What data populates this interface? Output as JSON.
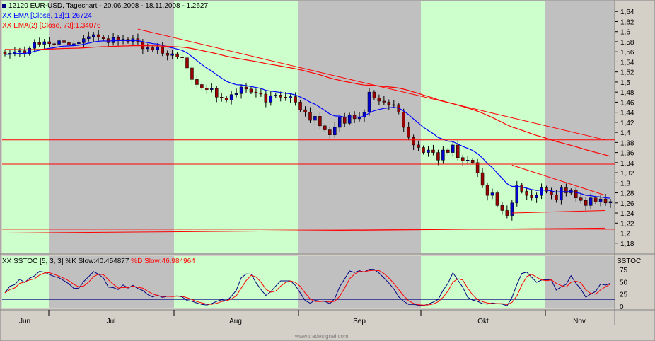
{
  "header": {
    "symbol_line": "12120  EUR-USD, Tagechart - 20.06.2008 - 18.11.2008 - 1.2627",
    "ema13_label": "EMA [Close, 13]:1.26724",
    "ema73_label": "EMA(2) [Close, 73]:1.34076"
  },
  "stoch": {
    "panel_tag": "SSTOC",
    "label_prefix": "SSTOC [5, 3, 3]",
    "k_label": "%K Slow:40.454877",
    "d_label": "%D Slow:46.984964",
    "levels": [
      80,
      20
    ],
    "axis_labels": [
      "75",
      "50",
      "25",
      "0"
    ]
  },
  "watermark": "www.tradesignal.com",
  "colors": {
    "bg_green": "#ccffcc",
    "bg_gray": "#c0c0c0",
    "candle_up": "#0000cc",
    "candle_down": "#990000",
    "ema13": "#0000ff",
    "ema73": "#ff0000",
    "trend": "#ff0000"
  },
  "chart_data": [
    {
      "type": "candlestick",
      "title": "12120  EUR-USD, Tagechart - 20.06.2008 - 18.11.2008 - 1.2627",
      "x_labels": [
        "Jun",
        "Jul",
        "Aug",
        "Sep",
        "Okt",
        "Nov"
      ],
      "y_ticks": [
        "1,64",
        "1,62",
        "1,6",
        "1,58",
        "1,56",
        "1,54",
        "1,52",
        "1,5",
        "1,48",
        "1,46",
        "1,44",
        "1,42",
        "1,4",
        "1,38",
        "1,36",
        "1,34",
        "1,32",
        "1,3",
        "1,28",
        "1,26",
        "1,24",
        "1,22",
        "1,2",
        "1,18"
      ],
      "ylim": [
        1.16,
        1.66
      ],
      "month_shading": [
        {
          "month": "Jun",
          "color": "green"
        },
        {
          "month": "Jul",
          "color": "gray"
        },
        {
          "month": "Aug",
          "color": "green"
        },
        {
          "month": "Sep",
          "color": "gray"
        },
        {
          "month": "Okt",
          "color": "green"
        },
        {
          "month": "Nov",
          "color": "gray"
        }
      ],
      "close": [
        1.555,
        1.557,
        1.56,
        1.562,
        1.556,
        1.567,
        1.578,
        1.575,
        1.58,
        1.576,
        1.575,
        1.582,
        1.578,
        1.574,
        1.576,
        1.578,
        1.586,
        1.59,
        1.594,
        1.589,
        1.586,
        1.578,
        1.588,
        1.582,
        1.585,
        1.58,
        1.586,
        1.58,
        1.566,
        1.568,
        1.564,
        1.57,
        1.557,
        1.553,
        1.556,
        1.55,
        1.548,
        1.528,
        1.505,
        1.495,
        1.488,
        1.485,
        1.487,
        1.47,
        1.468,
        1.464,
        1.475,
        1.477,
        1.49,
        1.486,
        1.48,
        1.478,
        1.476,
        1.46,
        1.473,
        1.474,
        1.47,
        1.468,
        1.471,
        1.46,
        1.445,
        1.44,
        1.424,
        1.432,
        1.413,
        1.405,
        1.395,
        1.41,
        1.43,
        1.418,
        1.435,
        1.427,
        1.43,
        1.44,
        1.48,
        1.468,
        1.462,
        1.46,
        1.455,
        1.455,
        1.44,
        1.41,
        1.39,
        1.375,
        1.37,
        1.36,
        1.365,
        1.36,
        1.345,
        1.365,
        1.36,
        1.375,
        1.35,
        1.343,
        1.345,
        1.34,
        1.32,
        1.295,
        1.275,
        1.28,
        1.255,
        1.245,
        1.235,
        1.26,
        1.295,
        1.283,
        1.275,
        1.27,
        1.275,
        1.29,
        1.283,
        1.276,
        1.266,
        1.29,
        1.28,
        1.285,
        1.27,
        1.265,
        1.255,
        1.27,
        1.262,
        1.268,
        1.26,
        1.2627
      ],
      "series": [
        {
          "name": "EMA [Close, 13]",
          "last": 1.26724
        },
        {
          "name": "EMA(2) [Close, 73]",
          "last": 1.34076
        }
      ],
      "horizontal_lines": [
        1.385,
        1.337,
        1.208
      ],
      "trendlines": [
        {
          "from_bar": 27,
          "from_value": 1.605,
          "to_bar": 122,
          "to_value": 1.385
        },
        {
          "from_bar": 103,
          "from_value": 1.335,
          "to_bar": 122,
          "to_value": 1.275
        },
        {
          "from_bar": 103,
          "from_value": 1.24,
          "to_bar": 122,
          "to_value": 1.245
        },
        {
          "from_bar": 0,
          "from_value": 1.2,
          "to_bar": 122,
          "to_value": 1.21
        }
      ]
    },
    {
      "type": "line",
      "title": "SSTOC [5, 3, 3]",
      "ylim": [
        -5,
        95
      ],
      "series": [
        {
          "name": "%K Slow",
          "last": 40.454877
        },
        {
          "name": "%D Slow",
          "last": 46.984964
        }
      ]
    }
  ]
}
